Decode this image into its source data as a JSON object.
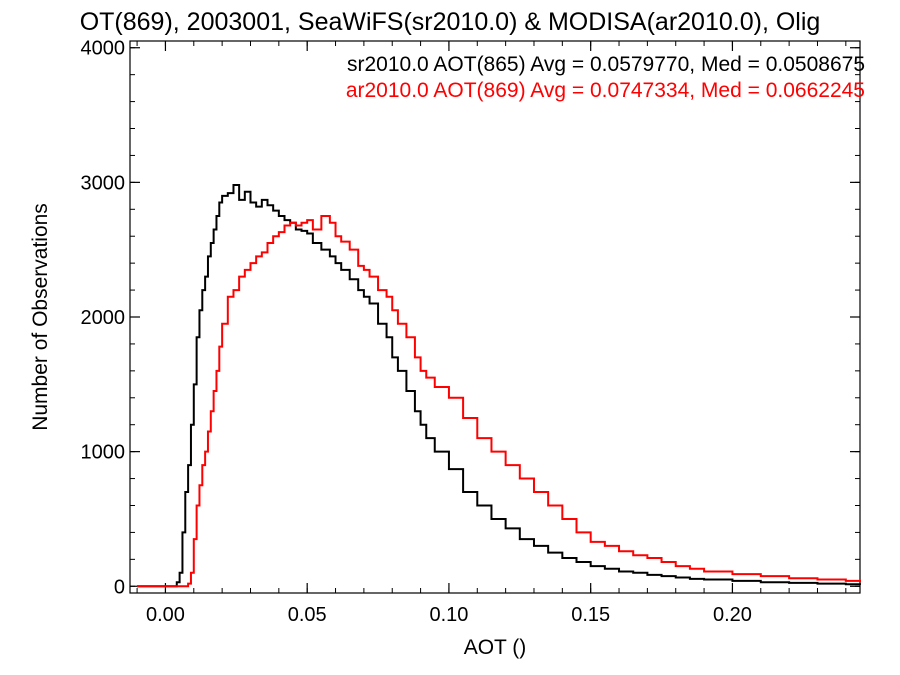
{
  "chart_data": {
    "type": "line",
    "title": "OT(869), 2003001, SeaWiFS(sr2010.0) & MODISA(ar2010.0), Olig",
    "xlabel": "AOT ()",
    "ylabel": "Number of Observations",
    "xlim": [
      -0.0125,
      0.245
    ],
    "ylim": [
      -50,
      4050
    ],
    "xticks": [
      0.0,
      0.05,
      0.1,
      0.15,
      0.2
    ],
    "xtick_labels": [
      "0.00",
      "0.05",
      "0.10",
      "0.15",
      "0.20"
    ],
    "yticks": [
      0,
      1000,
      2000,
      3000,
      4000
    ],
    "ytick_labels": [
      "0",
      "1000",
      "2000",
      "3000",
      "4000"
    ],
    "grid": false,
    "legend_placement": "top-right",
    "colors": {
      "series1": "#000000",
      "series2": "#ff0000"
    },
    "annotations": [
      {
        "text": "sr2010.0 AOT(865) Avg = 0.0579770, Med = 0.0508675",
        "color": "#000000"
      },
      {
        "text": "ar2010.0 AOT(869) Avg = 0.0747334, Med = 0.0662245",
        "color": "#ff0000"
      }
    ],
    "series": [
      {
        "color": "#000000",
        "x": [
          -0.01,
          0.0,
          0.004,
          0.005,
          0.006,
          0.007,
          0.008,
          0.009,
          0.01,
          0.011,
          0.012,
          0.013,
          0.014,
          0.015,
          0.016,
          0.017,
          0.018,
          0.019,
          0.02,
          0.022,
          0.024,
          0.026,
          0.028,
          0.03,
          0.032,
          0.034,
          0.036,
          0.038,
          0.04,
          0.042,
          0.044,
          0.046,
          0.048,
          0.05,
          0.052,
          0.055,
          0.058,
          0.06,
          0.062,
          0.065,
          0.068,
          0.07,
          0.072,
          0.075,
          0.078,
          0.08,
          0.082,
          0.085,
          0.088,
          0.09,
          0.092,
          0.095,
          0.1,
          0.105,
          0.11,
          0.115,
          0.12,
          0.125,
          0.13,
          0.135,
          0.14,
          0.145,
          0.15,
          0.155,
          0.16,
          0.165,
          0.17,
          0.175,
          0.18,
          0.185,
          0.19,
          0.2,
          0.21,
          0.22,
          0.23,
          0.24,
          0.245
        ],
        "y": [
          0,
          0,
          30,
          100,
          400,
          700,
          900,
          1200,
          1500,
          1850,
          2050,
          2200,
          2300,
          2450,
          2550,
          2650,
          2750,
          2850,
          2900,
          2920,
          2980,
          2870,
          2930,
          2850,
          2820,
          2870,
          2830,
          2790,
          2750,
          2720,
          2700,
          2650,
          2640,
          2620,
          2550,
          2500,
          2450,
          2400,
          2350,
          2280,
          2200,
          2150,
          2100,
          1950,
          1850,
          1700,
          1600,
          1450,
          1300,
          1200,
          1100,
          1000,
          870,
          700,
          600,
          500,
          430,
          350,
          300,
          250,
          210,
          180,
          150,
          130,
          110,
          100,
          85,
          75,
          65,
          55,
          50,
          40,
          30,
          25,
          20,
          15,
          10
        ]
      },
      {
        "color": "#ff0000",
        "x": [
          -0.01,
          0.0,
          0.008,
          0.009,
          0.01,
          0.011,
          0.012,
          0.013,
          0.014,
          0.015,
          0.016,
          0.017,
          0.018,
          0.019,
          0.02,
          0.022,
          0.024,
          0.026,
          0.028,
          0.03,
          0.032,
          0.034,
          0.036,
          0.038,
          0.04,
          0.042,
          0.044,
          0.046,
          0.048,
          0.05,
          0.052,
          0.055,
          0.058,
          0.06,
          0.062,
          0.065,
          0.068,
          0.07,
          0.072,
          0.075,
          0.078,
          0.08,
          0.082,
          0.085,
          0.088,
          0.09,
          0.092,
          0.095,
          0.1,
          0.105,
          0.11,
          0.115,
          0.12,
          0.125,
          0.13,
          0.135,
          0.14,
          0.145,
          0.15,
          0.155,
          0.16,
          0.165,
          0.17,
          0.175,
          0.18,
          0.185,
          0.19,
          0.2,
          0.21,
          0.22,
          0.23,
          0.24,
          0.245
        ],
        "y": [
          0,
          0,
          20,
          100,
          350,
          600,
          750,
          900,
          1000,
          1150,
          1300,
          1450,
          1600,
          1780,
          1950,
          2150,
          2200,
          2300,
          2350,
          2400,
          2450,
          2480,
          2550,
          2600,
          2630,
          2680,
          2700,
          2680,
          2700,
          2720,
          2650,
          2750,
          2700,
          2600,
          2560,
          2500,
          2380,
          2350,
          2300,
          2200,
          2150,
          2050,
          1950,
          1850,
          1700,
          1600,
          1550,
          1480,
          1400,
          1250,
          1100,
          1000,
          900,
          800,
          700,
          600,
          500,
          400,
          330,
          300,
          260,
          230,
          210,
          180,
          150,
          130,
          110,
          90,
          75,
          60,
          50,
          40,
          30
        ]
      }
    ]
  }
}
